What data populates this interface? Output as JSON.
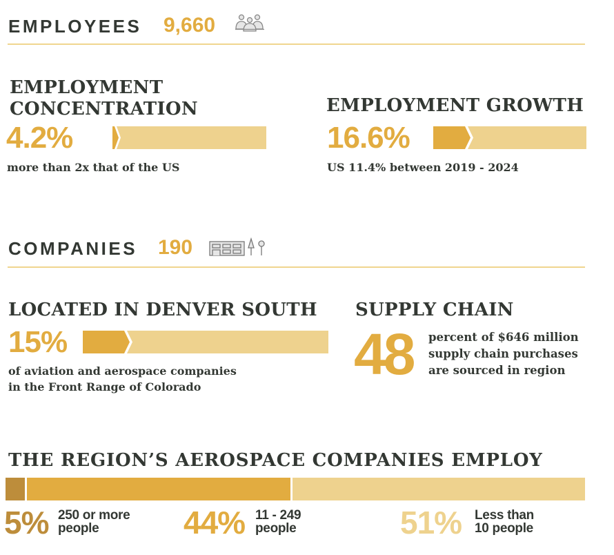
{
  "employees": {
    "label": "EMPLOYEES",
    "value": "9,660",
    "icon": "people-icon"
  },
  "concentration": {
    "title_line1": "EMPLOYMENT",
    "title_line2": "CONCENTRATION",
    "value": "4.2%",
    "note": "more than 2x that of the US",
    "bar_percent": 4.2
  },
  "growth": {
    "title": "EMPLOYMENT GROWTH",
    "value": "16.6%",
    "note": "US 11.4% between 2019 - 2024",
    "bar_percent": 16.6
  },
  "companies": {
    "label": "COMPANIES",
    "value": "190",
    "icon": "buildings-icon"
  },
  "located": {
    "title": "LOCATED IN DENVER SOUTH",
    "value": "15%",
    "note_line1": "of aviation and aerospace companies",
    "note_line2": "in the Front Range of Colorado",
    "bar_percent": 15
  },
  "supply": {
    "title": "SUPPLY CHAIN",
    "value": "48",
    "note_line1": "percent of $646 million",
    "note_line2": "supply chain purchases",
    "note_line3": "are sourced in region"
  },
  "region": {
    "title": "THE REGION’S AEROSPACE COMPANIES EMPLOY",
    "segments": [
      {
        "value": "5%",
        "line1": "250 or more",
        "line2": "people",
        "percent": 5,
        "color": "#bd8d3b"
      },
      {
        "value": "44%",
        "line1": "11 - 249",
        "line2": "people",
        "percent": 44,
        "color": "#e2ac40"
      },
      {
        "value": "51%",
        "line1": "Less than",
        "line2": "10 people",
        "percent": 51,
        "color": "#eed28e"
      }
    ]
  },
  "colors": {
    "accent": "#e2ac40",
    "light": "#eed28e",
    "dark": "#bd8d3b",
    "text": "#333833"
  }
}
